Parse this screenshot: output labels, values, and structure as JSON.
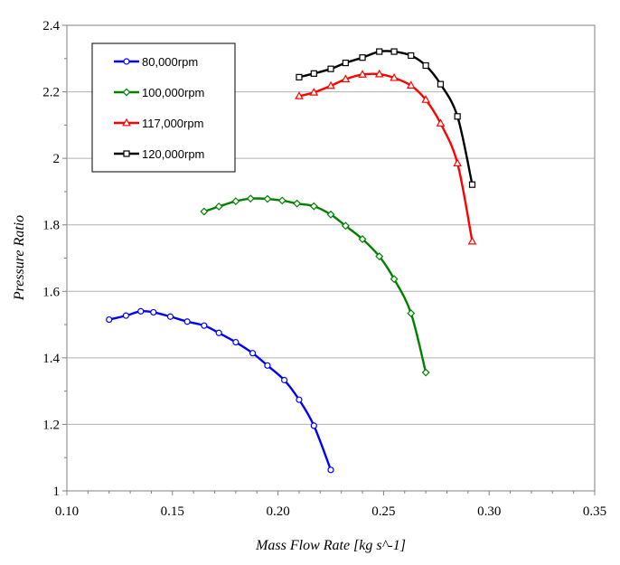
{
  "chart_data": {
    "type": "line",
    "title": "",
    "xlabel": "Mass Flow Rate [kg s^-1]",
    "ylabel": "Pressure Ratio",
    "xlim": [
      0.1,
      0.35
    ],
    "ylim": [
      1.0,
      2.4
    ],
    "x_ticks": [
      "0.10",
      "0.15",
      "0.20",
      "0.25",
      "0.30",
      "0.35"
    ],
    "y_ticks": [
      "1",
      "1.2",
      "1.4",
      "1.6",
      "1.8",
      "2",
      "2.2",
      "2.4"
    ],
    "grid": "horizontal",
    "legend_position": "top-left",
    "series": [
      {
        "name": "80,000rpm",
        "color": "#0000ff",
        "marker": "circle",
        "x": [
          0.12,
          0.128,
          0.135,
          0.141,
          0.149,
          0.157,
          0.165,
          0.172,
          0.18,
          0.188,
          0.195,
          0.203,
          0.21,
          0.217,
          0.225
        ],
        "y": [
          1.515,
          1.527,
          1.54,
          1.537,
          1.524,
          1.509,
          1.497,
          1.475,
          1.447,
          1.414,
          1.377,
          1.333,
          1.274,
          1.196,
          1.063
        ]
      },
      {
        "name": "100,000rpm",
        "color": "#008000",
        "marker": "diamond",
        "x": [
          0.165,
          0.172,
          0.18,
          0.187,
          0.195,
          0.202,
          0.209,
          0.217,
          0.225,
          0.232,
          0.24,
          0.248,
          0.255,
          0.263,
          0.27
        ],
        "y": [
          1.84,
          1.855,
          1.871,
          1.879,
          1.878,
          1.873,
          1.864,
          1.856,
          1.831,
          1.797,
          1.757,
          1.705,
          1.637,
          1.534,
          1.356
        ]
      },
      {
        "name": "117,000rpm",
        "color": "#ff0000",
        "marker": "triangle",
        "x": [
          0.21,
          0.217,
          0.225,
          0.232,
          0.24,
          0.248,
          0.255,
          0.263,
          0.27,
          0.277,
          0.285,
          0.292
        ],
        "y": [
          2.187,
          2.198,
          2.218,
          2.238,
          2.252,
          2.253,
          2.242,
          2.219,
          2.176,
          2.105,
          1.985,
          1.75
        ]
      },
      {
        "name": "120,000rpm",
        "color": "#000000",
        "marker": "square",
        "x": [
          0.21,
          0.217,
          0.225,
          0.232,
          0.24,
          0.248,
          0.255,
          0.263,
          0.27,
          0.277,
          0.285,
          0.292
        ],
        "y": [
          2.244,
          2.255,
          2.269,
          2.287,
          2.303,
          2.321,
          2.321,
          2.309,
          2.279,
          2.223,
          2.126,
          1.921
        ]
      }
    ]
  }
}
